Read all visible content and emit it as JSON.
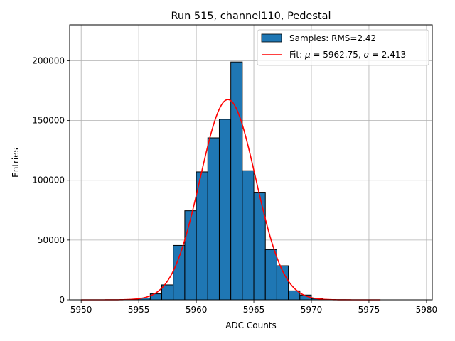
{
  "chart_data": {
    "type": "bar",
    "title": "Run 515, channel110, Pedestal",
    "xlabel": "ADC Counts",
    "ylabel": "Entries",
    "xlim": [
      5949,
      5980.5
    ],
    "ylim": [
      0,
      230000
    ],
    "xticks": [
      5950,
      5955,
      5960,
      5965,
      5970,
      5975,
      5980
    ],
    "yticks": [
      0,
      50000,
      100000,
      150000,
      200000
    ],
    "grid": true,
    "legend_position": "top-right",
    "histogram": {
      "name": "Samples: RMS=2.42",
      "color": "#1f77b4",
      "bin_width": 1,
      "bin_edges_left": [
        5954,
        5955,
        5956,
        5957,
        5958,
        5959,
        5960,
        5961,
        5962,
        5963,
        5964,
        5965,
        5966,
        5967,
        5968,
        5969,
        5970,
        5971,
        5972
      ],
      "counts": [
        200,
        1500,
        5000,
        12500,
        45500,
        74500,
        107000,
        135500,
        151000,
        199000,
        108000,
        90000,
        42000,
        28500,
        7500,
        4000,
        1000,
        200,
        50
      ]
    },
    "fit": {
      "label_prefix": "Fit: ",
      "mu_symbol": "μ",
      "sigma_symbol": "σ",
      "mu": 5962.75,
      "sigma": 2.413,
      "amplitude": 167500,
      "x_range": [
        5950,
        5976
      ],
      "color": "#ff0000"
    }
  }
}
